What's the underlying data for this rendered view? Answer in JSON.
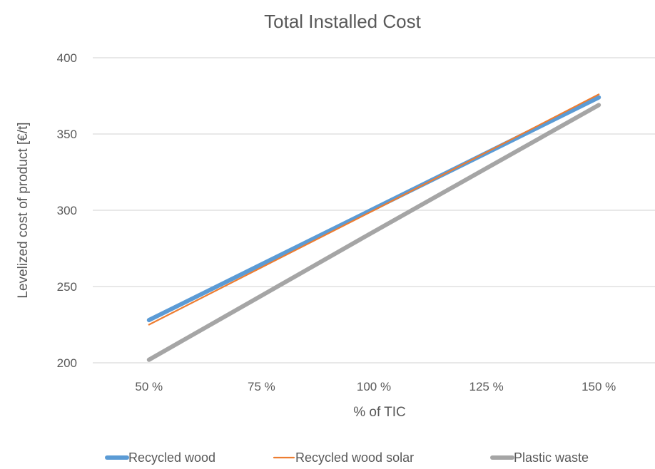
{
  "chart_data": {
    "type": "line",
    "title": "Total Installed Cost",
    "xlabel": "% of TIC",
    "ylabel": "Levelized cost of product [€/t]",
    "categories": [
      "50 %",
      "75 %",
      "100 %",
      "125 %",
      "150 %"
    ],
    "ylim": [
      200,
      400
    ],
    "yticks": [
      200,
      250,
      300,
      350,
      400
    ],
    "grid": true,
    "legend": "bottom",
    "series": [
      {
        "name": "Recycled wood",
        "color": "#5b9bd5",
        "values": [
          228,
          264.5,
          301,
          337.5,
          374
        ]
      },
      {
        "name": "Recycled wood solar",
        "color": "#ed7d31",
        "values": [
          225,
          262.5,
          300,
          338,
          376
        ]
      },
      {
        "name": "Plastic waste",
        "color": "#a5a5a5",
        "values": [
          202,
          244,
          286,
          327.5,
          369
        ]
      }
    ]
  }
}
